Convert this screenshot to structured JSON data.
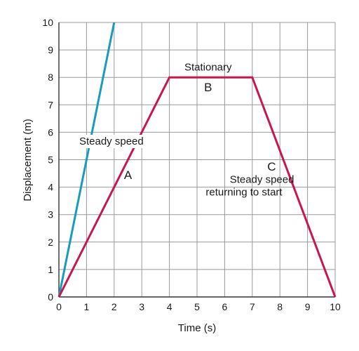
{
  "chart_data": {
    "type": "line",
    "title": "",
    "xlabel": "Time (s)",
    "ylabel": "Displacement (m)",
    "xlim": [
      0,
      10
    ],
    "ylim": [
      0,
      10
    ],
    "x_ticks": [
      "0",
      "1",
      "2",
      "3",
      "4",
      "5",
      "6",
      "7",
      "8",
      "9",
      "10"
    ],
    "y_ticks": [
      "0",
      "1",
      "2",
      "3",
      "4",
      "5",
      "6",
      "7",
      "8",
      "9",
      "10"
    ],
    "grid": true,
    "series": [
      {
        "x": [
          0,
          2
        ],
        "y": [
          0,
          10
        ],
        "color": "#1a9bbd"
      },
      {
        "x": [
          0,
          4,
          7,
          10
        ],
        "y": [
          0,
          8,
          8,
          0
        ],
        "color": "#c8174f"
      }
    ],
    "annotations": [
      {
        "text": "Steady speed",
        "x": 1.9,
        "y": 5.55,
        "boxed": true
      },
      {
        "text": "A",
        "x": 2.5,
        "y": 4.3
      },
      {
        "text": "Stationary",
        "x": 5.4,
        "y": 8.25
      },
      {
        "text": "B",
        "x": 5.4,
        "y": 7.5
      },
      {
        "text": "C",
        "x": 7.7,
        "y": 4.6
      },
      {
        "text": "Steady speed",
        "x": 7.35,
        "y": 4.15
      },
      {
        "text": "returning to start",
        "x": 6.7,
        "y": 3.7
      }
    ],
    "colors": {
      "grid": "#999999",
      "axis": "#333333",
      "text": "#1a1a1a"
    }
  }
}
